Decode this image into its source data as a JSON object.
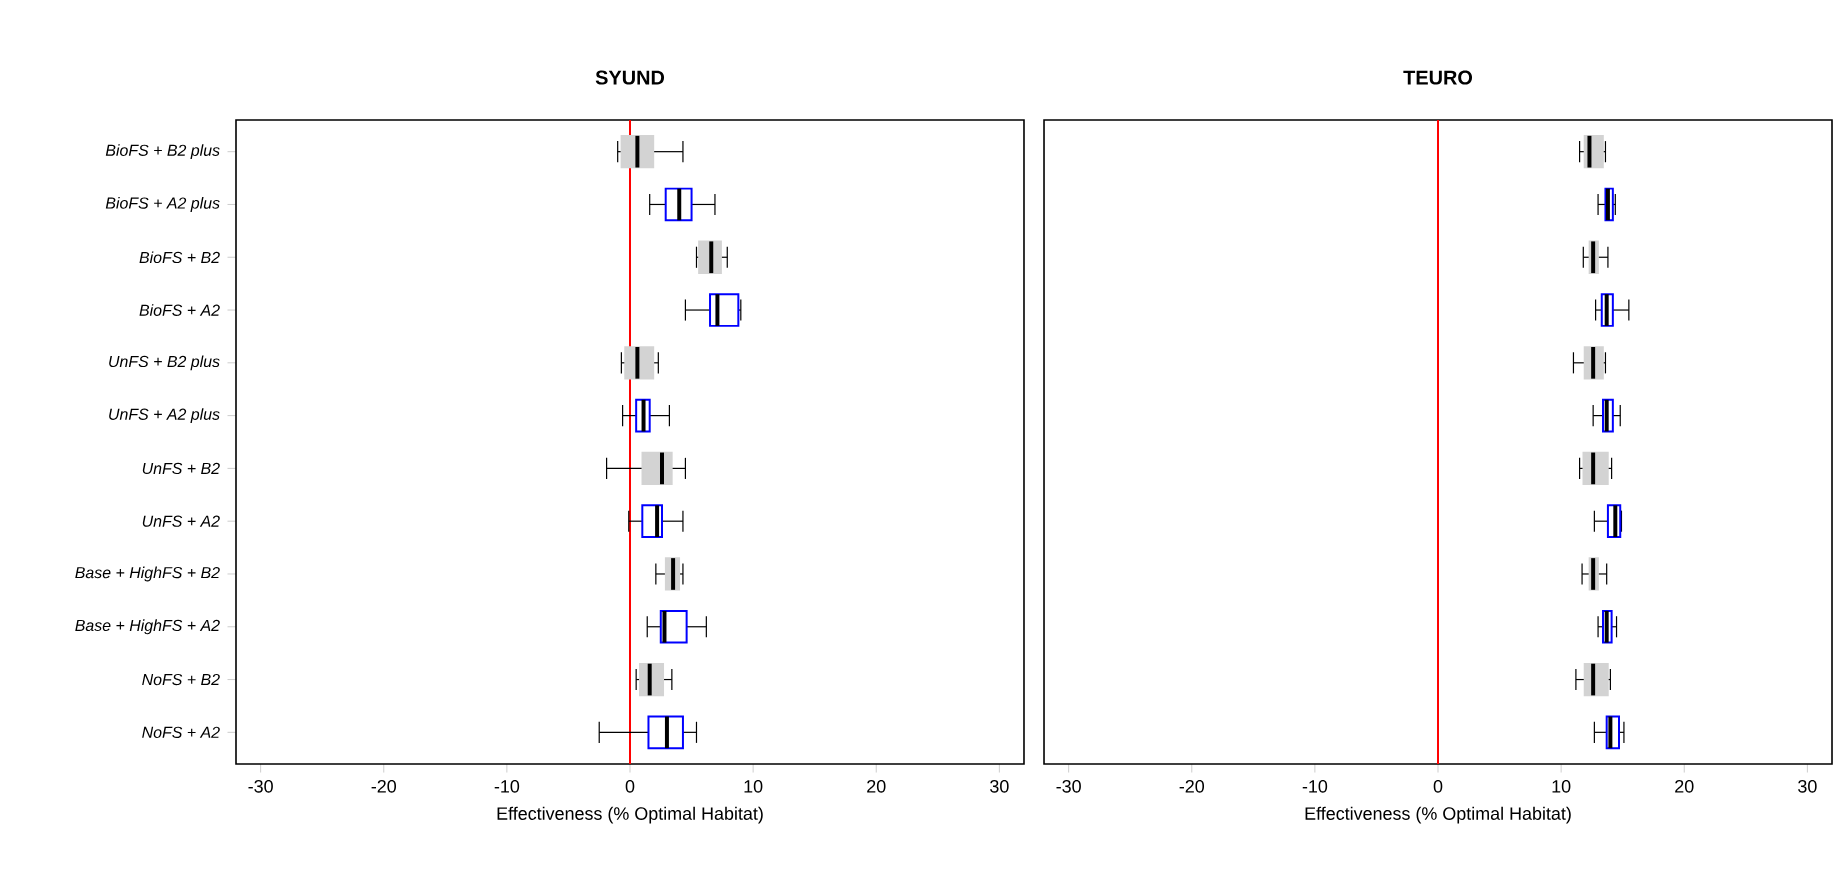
{
  "chart_data": [
    {
      "type": "box",
      "orientation": "horizontal",
      "title": "**SYUND**",
      "xlabel": "Effectiveness (% Optimal Habitat)",
      "categories": [
        "BioFS + B2 plus",
        "BioFS + A2 plus",
        "BioFS + B2",
        "BioFS + A2",
        "UnFS + B2 plus",
        "UnFS + A2 plus",
        "UnFS + B2",
        "UnFS + A2",
        "Base + HighFS + B2",
        "Base + HighFS + A2",
        "NoFS + B2",
        "NoFS + A2"
      ],
      "series": [
        {
          "color": "#d3d3d3",
          "boxes": [
            {
              "low": -1.0,
              "q1": -0.7,
              "median": 0.6,
              "q3": 1.9,
              "high": 4.3
            },
            null,
            {
              "low": 5.4,
              "q1": 5.6,
              "median": 6.6,
              "q3": 7.4,
              "high": 7.9
            },
            null,
            {
              "low": -0.7,
              "q1": -0.4,
              "median": 0.6,
              "q3": 1.9,
              "high": 2.3
            },
            null,
            {
              "low": -1.9,
              "q1": 1.0,
              "median": 2.6,
              "q3": 3.4,
              "high": 4.5
            },
            null,
            {
              "low": 2.1,
              "q1": 2.9,
              "median": 3.5,
              "q3": 4.0,
              "high": 4.3
            },
            null,
            {
              "low": 0.5,
              "q1": 0.8,
              "median": 1.6,
              "q3": 2.7,
              "high": 3.4
            },
            null
          ]
        },
        {
          "color": "#0000ff",
          "boxes": [
            null,
            {
              "low": 1.6,
              "q1": 2.9,
              "median": 4.0,
              "q3": 5.0,
              "high": 6.9
            },
            null,
            {
              "low": 4.5,
              "q1": 6.5,
              "median": 7.1,
              "q3": 8.8,
              "high": 9.0
            },
            null,
            {
              "low": -0.6,
              "q1": 0.5,
              "median": 1.1,
              "q3": 1.6,
              "high": 3.2
            },
            null,
            {
              "low": -0.1,
              "q1": 1.0,
              "median": 2.2,
              "q3": 2.6,
              "high": 4.3
            },
            null,
            {
              "low": 1.4,
              "q1": 2.5,
              "median": 2.8,
              "q3": 4.6,
              "high": 6.2
            },
            null,
            {
              "low": -2.5,
              "q1": 1.5,
              "median": 3.0,
              "q3": 4.3,
              "high": 5.4
            }
          ]
        }
      ],
      "xlim": [
        -32,
        32
      ],
      "xticks": [
        -30,
        -20,
        -10,
        0,
        10,
        20,
        30
      ],
      "ref_lines": [
        {
          "axis": "x",
          "value": 0,
          "color": "#ff0000"
        }
      ]
    },
    {
      "type": "box",
      "orientation": "horizontal",
      "title": "**TEURO**",
      "xlabel": "Effectiveness (% Optimal Habitat)",
      "tick_labels": "x",
      "series": [
        {
          "color": "#d3d3d3",
          "boxes": [
            {
              "low": 11.5,
              "q1": 11.9,
              "median": 12.3,
              "q3": 13.4,
              "high": 13.6
            },
            null,
            {
              "low": 11.8,
              "q1": 12.3,
              "median": 12.6,
              "q3": 13.0,
              "high": 13.8
            },
            null,
            {
              "low": 11.0,
              "q1": 11.9,
              "median": 12.6,
              "q3": 13.4,
              "high": 13.6
            },
            null,
            {
              "low": 11.5,
              "q1": 11.8,
              "median": 12.6,
              "q3": 13.8,
              "high": 14.1
            },
            null,
            {
              "low": 11.7,
              "q1": 12.3,
              "median": 12.6,
              "q3": 13.0,
              "high": 13.7
            },
            null,
            {
              "low": 11.2,
              "q1": 11.9,
              "median": 12.6,
              "q3": 13.8,
              "high": 14.0
            },
            null
          ]
        },
        {
          "color": "#0000ff",
          "boxes": [
            null,
            {
              "low": 13.0,
              "q1": 13.6,
              "median": 13.8,
              "q3": 14.2,
              "high": 14.4
            },
            null,
            {
              "low": 12.8,
              "q1": 13.3,
              "median": 13.7,
              "q3": 14.2,
              "high": 15.5
            },
            null,
            {
              "low": 12.6,
              "q1": 13.4,
              "median": 13.7,
              "q3": 14.2,
              "high": 14.8
            },
            null,
            {
              "low": 12.7,
              "q1": 13.8,
              "median": 14.4,
              "q3": 14.8,
              "high": 14.9
            },
            null,
            {
              "low": 13.0,
              "q1": 13.4,
              "median": 13.7,
              "q3": 14.1,
              "high": 14.5
            },
            null,
            {
              "low": 12.7,
              "q1": 13.7,
              "median": 14.0,
              "q3": 14.7,
              "high": 15.1
            }
          ]
        }
      ],
      "xlim": [
        -32,
        32
      ],
      "xticks": [
        -30,
        -20,
        -10,
        0,
        10,
        20,
        30
      ],
      "ref_lines": [
        {
          "axis": "x",
          "value": 0,
          "color": "#ff0000"
        }
      ]
    }
  ]
}
